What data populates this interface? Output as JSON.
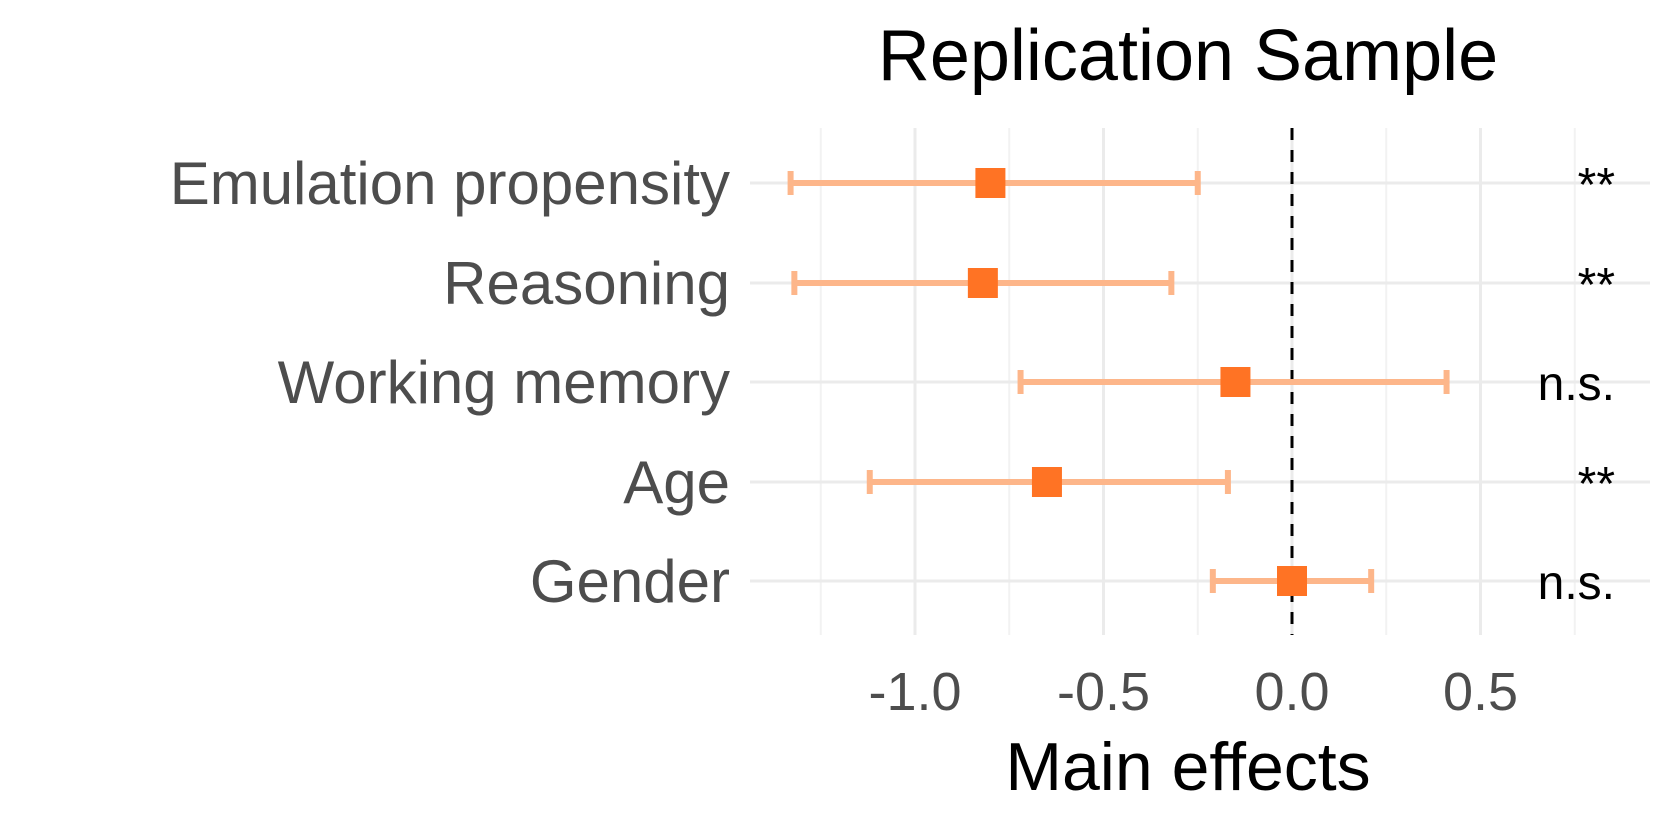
{
  "chart_data": {
    "type": "forest",
    "title": "Replication Sample",
    "xlabel": "Main effects",
    "ylabel": "",
    "xlim": [
      -1.25,
      0.8
    ],
    "xticks": [
      -1.0,
      -0.5,
      0.0,
      0.5
    ],
    "xtick_labels": [
      "-1.0",
      "-0.5",
      "0.0",
      "0.5"
    ],
    "reference_line": 0.0,
    "grid": true,
    "point_color": "#ff7324",
    "errorbar_color": "#fdb68a",
    "rows": [
      {
        "label": "Emulation propensity",
        "estimate": -0.8,
        "lower": -1.33,
        "upper": -0.25,
        "significance": "**"
      },
      {
        "label": "Reasoning",
        "estimate": -0.82,
        "lower": -1.32,
        "upper": -0.32,
        "significance": "**"
      },
      {
        "label": "Working memory",
        "estimate": -0.15,
        "lower": -0.72,
        "upper": 0.41,
        "significance": "n.s."
      },
      {
        "label": "Age",
        "estimate": -0.65,
        "lower": -1.12,
        "upper": -0.17,
        "significance": "**"
      },
      {
        "label": "Gender",
        "estimate": 0.0,
        "lower": -0.21,
        "upper": 0.21,
        "significance": "n.s."
      }
    ]
  }
}
